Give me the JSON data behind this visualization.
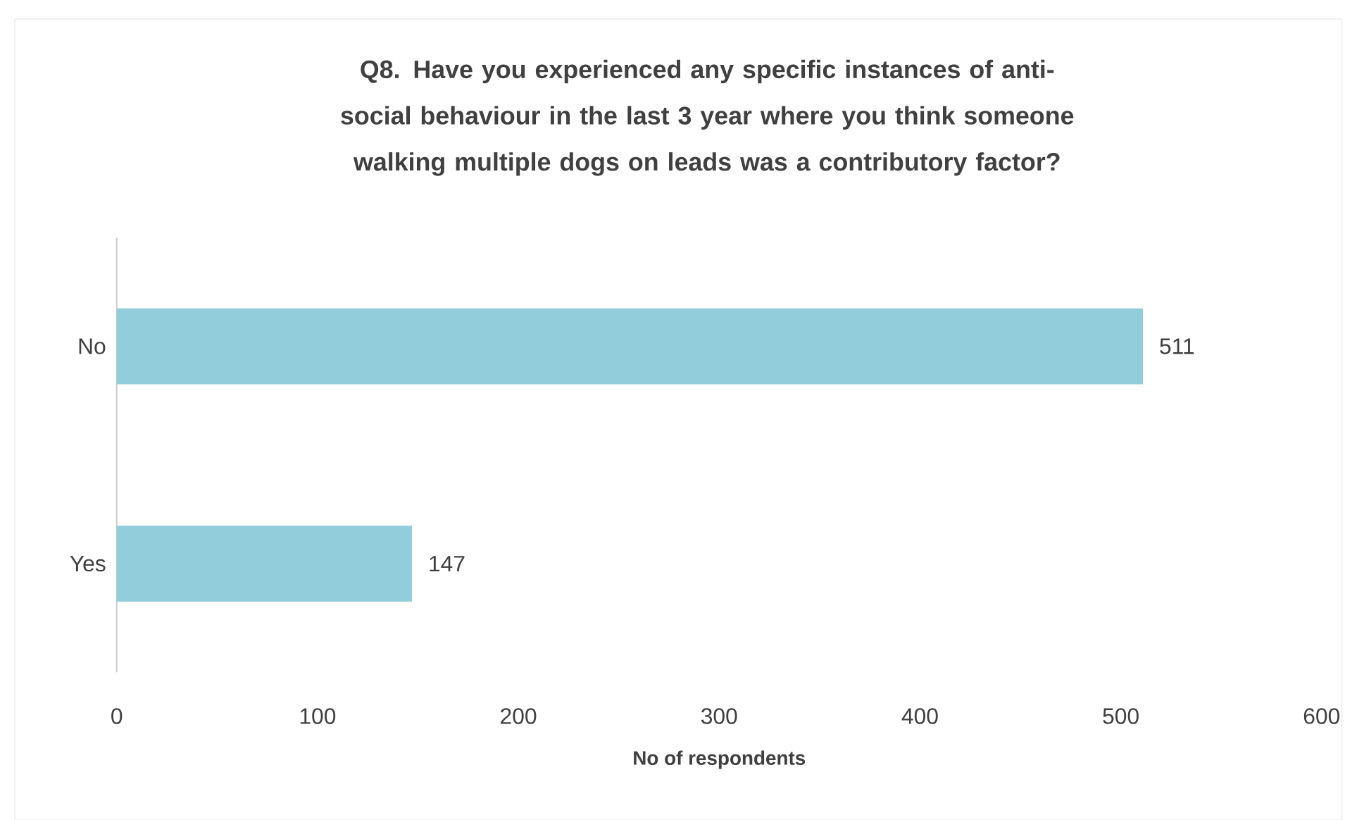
{
  "chart_data": {
    "type": "bar",
    "orientation": "horizontal",
    "title": "Q8. Have you experienced any specific instances of anti-social behaviour in the last 3 year where you think someone walking multiple dogs on leads was a contributory factor?",
    "xlabel": "No of respondents",
    "categories": [
      "No",
      "Yes"
    ],
    "values": [
      511,
      147
    ],
    "color": "#92cddc",
    "xlim": [
      0,
      600
    ],
    "xticks": [
      0,
      100,
      200,
      300,
      400,
      500,
      600
    ],
    "data_labels": true,
    "grid": false
  }
}
